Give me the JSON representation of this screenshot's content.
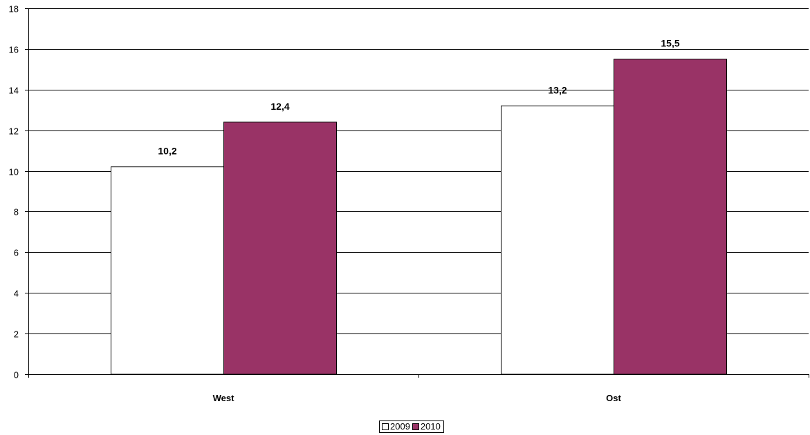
{
  "chart_data": {
    "type": "bar",
    "categories": [
      "West",
      "Ost"
    ],
    "series": [
      {
        "name": "2009",
        "values": [
          10.2,
          13.2
        ],
        "color": "#ffffff"
      },
      {
        "name": "2010",
        "values": [
          12.4,
          15.5
        ],
        "color": "#993366"
      }
    ],
    "data_labels": [
      [
        "10,2",
        "13,2"
      ],
      [
        "12,4",
        "15,5"
      ]
    ],
    "ylim": [
      0,
      18
    ],
    "yticks": [
      "0",
      "2",
      "4",
      "6",
      "8",
      "10",
      "12",
      "14",
      "16",
      "18"
    ],
    "grid": true,
    "legend_position": "bottom-center",
    "title": "",
    "xlabel": "",
    "ylabel": ""
  }
}
